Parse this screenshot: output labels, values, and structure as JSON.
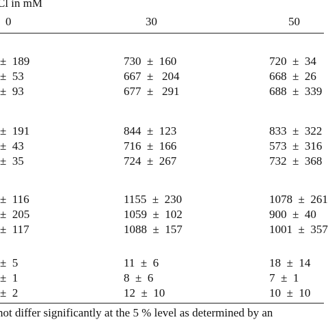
{
  "header": {
    "title": "Cl in mM",
    "columns": [
      "0",
      "30",
      "50"
    ]
  },
  "rows": [
    {
      "c0": "±  189",
      "c1": "730  ±  160",
      "c2": "720  ±  34"
    },
    {
      "c0": "±  53",
      "c1": "667  ±   204",
      "c2": "668  ±  26"
    },
    {
      "c0": "±  93",
      "c1": "677  ±   291",
      "c2": "688  ±  339"
    },
    {
      "c0": "±  191",
      "c1": "844  ±  123",
      "c2": "833  ±  322"
    },
    {
      "c0": "±  43",
      "c1": "716  ±  166",
      "c2": "573  ±  316"
    },
    {
      "c0": "±  35",
      "c1": "724  ±  267",
      "c2": "732  ±  368"
    },
    {
      "c0": "±  116",
      "c1": "1155  ±  230",
      "c2": "1078  ±  261"
    },
    {
      "c0": "±  205",
      "c1": "1059  ±  102",
      "c2": "900  ±  40"
    },
    {
      "c0": "±  117",
      "c1": "1088  ±  157",
      "c2": "1001  ±  357"
    },
    {
      "c0": "±  5",
      "c1": "11  ±  6",
      "c2": "18  ±  14"
    },
    {
      "c0": "±  1",
      "c1": "8  ±  6",
      "c2": "7  ±  1"
    },
    {
      "c0": "±  2",
      "c1": "12  ±  10",
      "c2": "10  ±  10"
    }
  ],
  "footnote": "not differ significantly at the 5 % level as determined by an"
}
